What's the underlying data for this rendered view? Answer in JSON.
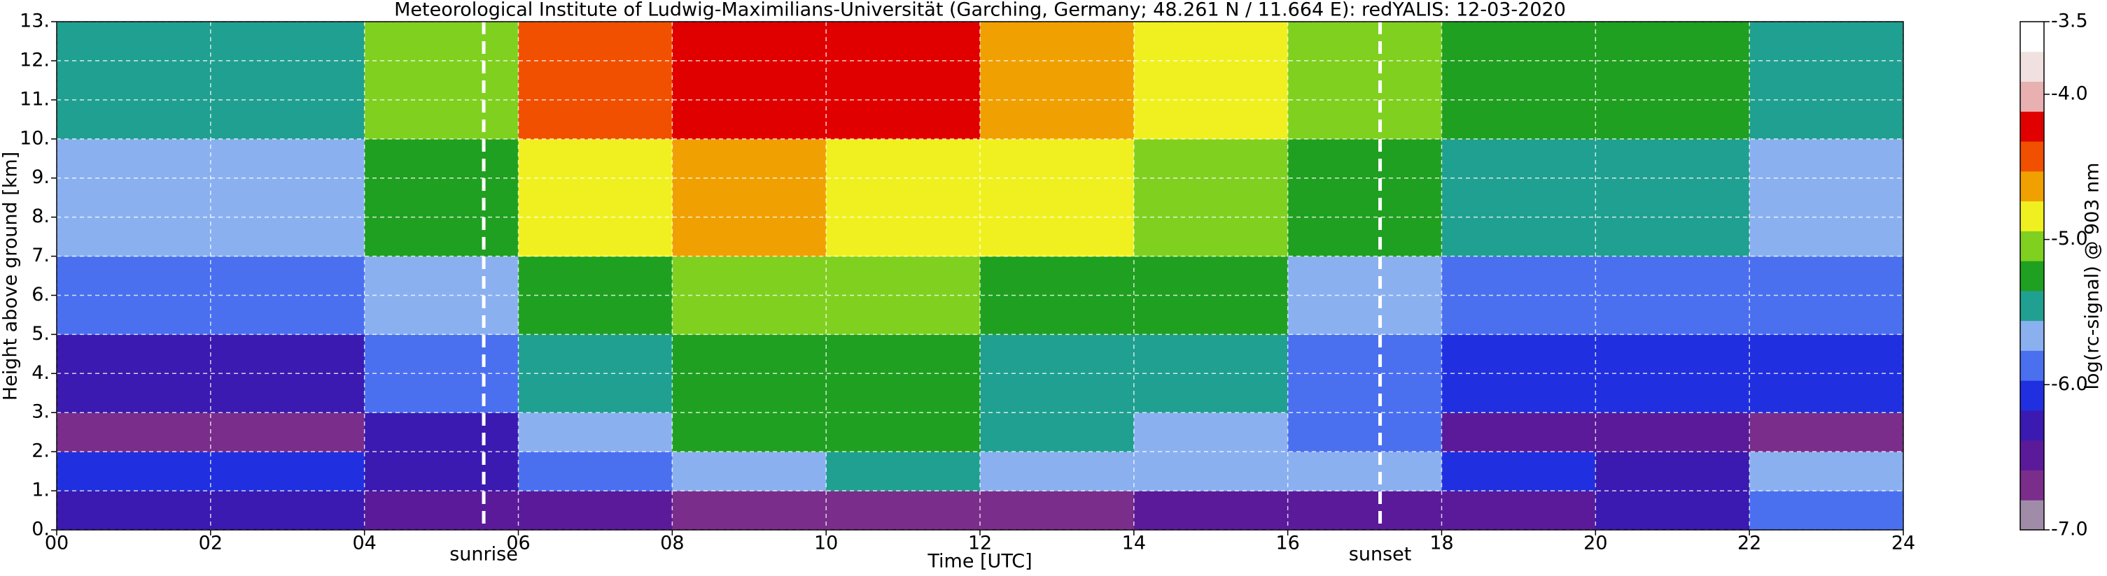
{
  "chart_data": {
    "type": "heatmap",
    "title": "Meteorological Institute of Ludwig-Maximilians-Universität (Garching, Germany; 48.261 N / 11.664 E):    redYALIS: 12-03-2020",
    "x_label": "Time [UTC]",
    "y_label": "Height above ground [km]",
    "colorbar_label": "log(rc-signal) @ 903 nm",
    "x_edges": [
      0,
      2,
      4,
      6,
      8,
      10,
      12,
      14,
      16,
      18,
      20,
      22,
      24
    ],
    "y_edges": [
      0,
      1,
      2,
      3,
      5,
      7,
      10,
      13
    ],
    "z": [
      [
        -6.3,
        -6.3,
        -6.4,
        -6.5,
        -6.6,
        -6.6,
        -6.6,
        -6.5,
        -6.5,
        -6.4,
        -6.3,
        -5.8
      ],
      [
        -6.0,
        -6.1,
        -6.2,
        -5.9,
        -5.6,
        -5.5,
        -5.6,
        -5.7,
        -5.7,
        -6.0,
        -6.2,
        -5.6
      ],
      [
        -6.6,
        -6.6,
        -6.3,
        -5.6,
        -5.3,
        -5.3,
        -5.4,
        -5.6,
        -5.9,
        -6.4,
        -6.5,
        -6.6
      ],
      [
        -6.2,
        -6.2,
        -5.8,
        -5.4,
        -5.2,
        -5.3,
        -5.4,
        -5.5,
        -5.8,
        -6.1,
        -6.1,
        -6.1
      ],
      [
        -5.9,
        -5.9,
        -5.6,
        -5.2,
        -5.0,
        -5.1,
        -5.2,
        -5.3,
        -5.6,
        -5.8,
        -5.8,
        -5.9
      ],
      [
        -5.6,
        -5.6,
        -5.3,
        -4.9,
        -4.7,
        -4.8,
        -4.9,
        -5.0,
        -5.3,
        -5.5,
        -5.5,
        -5.6
      ],
      [
        -5.4,
        -5.4,
        -5.0,
        -4.5,
        -4.2,
        -4.3,
        -4.6,
        -4.8,
        -5.1,
        -5.3,
        -5.3,
        -5.4
      ]
    ],
    "xlim": [
      0,
      24
    ],
    "ylim": [
      0,
      13
    ],
    "xticks": [
      {
        "value": 0,
        "label": "00"
      },
      {
        "value": 2,
        "label": "02"
      },
      {
        "value": 4,
        "label": "04"
      },
      {
        "value": 6,
        "label": "06"
      },
      {
        "value": 8,
        "label": "08"
      },
      {
        "value": 10,
        "label": "10"
      },
      {
        "value": 12,
        "label": "12"
      },
      {
        "value": 14,
        "label": "14"
      },
      {
        "value": 16,
        "label": "16"
      },
      {
        "value": 18,
        "label": "18"
      },
      {
        "value": 20,
        "label": "20"
      },
      {
        "value": 22,
        "label": "22"
      },
      {
        "value": 24,
        "label": "24"
      }
    ],
    "yticks": [
      {
        "value": 0,
        "label": "0."
      },
      {
        "value": 1,
        "label": "1."
      },
      {
        "value": 2,
        "label": "2."
      },
      {
        "value": 3,
        "label": "3."
      },
      {
        "value": 4,
        "label": "4."
      },
      {
        "value": 5,
        "label": "5."
      },
      {
        "value": 6,
        "label": "6."
      },
      {
        "value": 7,
        "label": "7."
      },
      {
        "value": 8,
        "label": "8."
      },
      {
        "value": 9,
        "label": "9."
      },
      {
        "value": 10,
        "label": "10."
      },
      {
        "value": 11,
        "label": "11."
      },
      {
        "value": 12,
        "label": "12."
      },
      {
        "value": 13,
        "label": "13."
      }
    ],
    "clim": [
      -7,
      -3.5
    ],
    "cticks": [
      {
        "value": -7,
        "label": "-7.0"
      },
      {
        "value": -6,
        "label": "-6.0"
      },
      {
        "value": -5,
        "label": "-5.0"
      },
      {
        "value": -4,
        "label": "-4.0"
      },
      -3.5
    ],
    "colormap": [
      "#a08ca8",
      "#7a2d8a",
      "#5a1a9a",
      "#3a1ab0",
      "#2030e0",
      "#4a70f0",
      "#8ab0f0",
      "#20a090",
      "#20a020",
      "#80d020",
      "#f0f020",
      "#f0a000",
      "#f05000",
      "#e00000",
      "#e8b0b0",
      "#f0e0e0",
      "#ffffff"
    ],
    "grid": true,
    "annotations": [
      {
        "label": "sunrise",
        "x": 5.55
      },
      {
        "label": "sunset",
        "x": 17.2
      }
    ]
  }
}
